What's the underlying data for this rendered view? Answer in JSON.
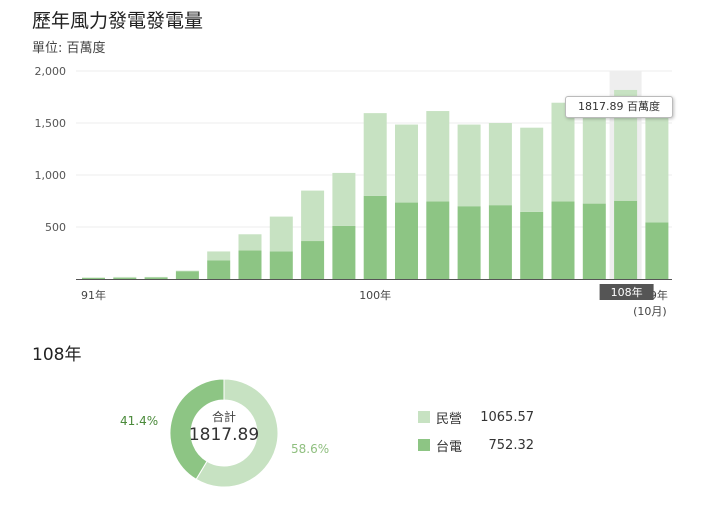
{
  "title": "歷年風力發電發電量",
  "subtitle": "單位: 百萬度",
  "tooltip_text": "1817.89 百萬度",
  "colors": {
    "light": "#c7e2c2",
    "dark": "#8dc584",
    "dark_text": "#4a8a3a",
    "light_text": "#8fbf7f",
    "selected_label_bg": "#555555",
    "highlight": "#eeeeee"
  },
  "chart_data": [
    {
      "type": "bar",
      "stacked": true,
      "categories": [
        "91",
        "92",
        "93",
        "94",
        "95",
        "96",
        "97",
        "98",
        "99",
        "100",
        "101",
        "102",
        "103",
        "104",
        "105",
        "106",
        "107",
        "108",
        "109"
      ],
      "series": [
        {
          "name": "台電",
          "values": [
            10,
            12,
            14,
            75,
            180,
            275,
            265,
            365,
            510,
            800,
            735,
            745,
            700,
            710,
            645,
            745,
            725,
            752.32,
            545
          ]
        },
        {
          "name": "民營",
          "values": [
            5,
            8,
            6,
            5,
            85,
            155,
            335,
            485,
            510,
            795,
            750,
            870,
            785,
            790,
            810,
            950,
            975,
            1065.57,
            1015
          ]
        }
      ],
      "ylim": [
        0,
        2000
      ],
      "yticks": [
        "500",
        "1,000",
        "1,500",
        "2,000"
      ],
      "xtick_labels": {
        "first": "91年",
        "mid": "100年",
        "selected": "108年",
        "last": "109年",
        "last_note": "(10月)"
      },
      "selected_category": "108",
      "grid": true
    },
    {
      "type": "pie",
      "donut": true,
      "year_label": "108年",
      "center_label": "合計",
      "center_value": "1817.89",
      "slices": [
        {
          "name": "民營",
          "value": 1065.57,
          "value_label": "1065.57",
          "percent_label": "58.6%"
        },
        {
          "name": "台電",
          "value": 752.32,
          "value_label": "752.32",
          "percent_label": "41.4%"
        }
      ]
    }
  ]
}
